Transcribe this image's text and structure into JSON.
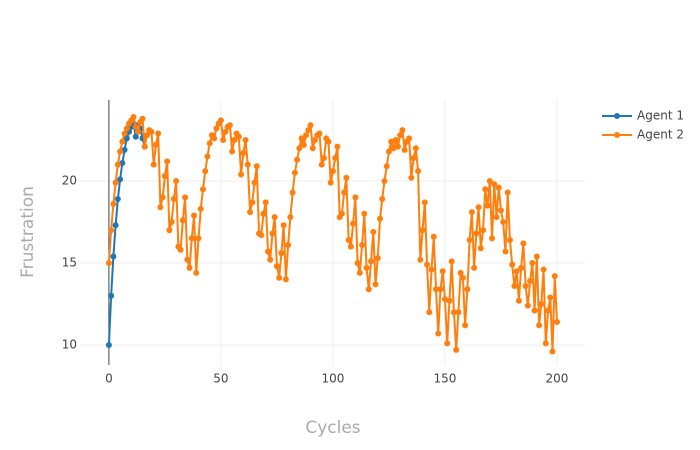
{
  "chart_data": {
    "type": "line",
    "x_label": "Cycles",
    "y_label": "Frustration",
    "xlim": [
      -12.9,
      212.5
    ],
    "ylim": [
      8.78,
      24.94
    ],
    "xticks": [
      0,
      50,
      100,
      150,
      200
    ],
    "yticks": [
      10,
      15,
      20
    ],
    "grid": true,
    "legend": "top-right",
    "series": [
      {
        "name": "Agent 1",
        "color": "#1f77b4",
        "x": [
          0,
          1,
          2,
          3,
          4,
          5,
          6,
          7,
          8,
          9,
          10,
          11,
          12,
          13,
          14,
          15,
          16
        ],
        "values": [
          10.0,
          13.0,
          15.4,
          17.3,
          18.9,
          20.1,
          21.1,
          21.9,
          22.6,
          23.0,
          23.3,
          23.5,
          22.7,
          23.4,
          23.2,
          22.6,
          22.1
        ]
      },
      {
        "name": "Agent 2",
        "color": "#ff7f0e",
        "x": [
          0,
          1,
          2,
          3,
          4,
          5,
          6,
          7,
          8,
          9,
          10,
          11,
          12,
          13,
          14,
          15,
          16,
          17,
          18,
          19,
          20,
          21,
          22,
          23,
          24,
          25,
          26,
          27,
          28,
          29,
          30,
          31,
          32,
          33,
          34,
          35,
          36,
          37,
          38,
          39,
          40,
          41,
          42,
          43,
          44,
          45,
          46,
          47,
          48,
          49,
          50,
          51,
          52,
          53,
          54,
          55,
          56,
          57,
          58,
          59,
          60,
          61,
          62,
          63,
          64,
          65,
          66,
          67,
          68,
          69,
          70,
          71,
          72,
          73,
          74,
          75,
          76,
          77,
          78,
          79,
          80,
          81,
          82,
          83,
          84,
          85,
          86,
          87,
          88,
          89,
          90,
          91,
          92,
          93,
          94,
          95,
          96,
          97,
          98,
          99,
          100,
          101,
          102,
          103,
          104,
          105,
          106,
          107,
          108,
          109,
          110,
          111,
          112,
          113,
          114,
          115,
          116,
          117,
          118,
          119,
          120,
          121,
          122,
          123,
          124,
          125,
          126,
          127,
          128,
          129,
          130,
          131,
          132,
          133,
          134,
          135,
          136,
          137,
          138,
          139,
          140,
          141,
          142,
          143,
          144,
          145,
          146,
          147,
          148,
          149,
          150,
          151,
          152,
          153,
          154,
          155,
          156,
          157,
          158,
          159,
          160,
          161,
          162,
          163,
          164,
          165,
          166,
          167,
          168,
          169,
          170,
          171,
          172,
          173,
          174,
          175,
          176,
          177,
          178,
          179,
          180,
          181,
          182,
          183,
          184,
          185,
          186,
          187,
          188,
          189,
          190,
          191,
          192,
          193,
          194,
          195,
          196,
          197,
          198,
          199,
          200
        ],
        "values": [
          15.0,
          17.0,
          18.6,
          19.9,
          21.0,
          21.8,
          22.4,
          22.9,
          23.2,
          23.5,
          23.7,
          23.9,
          23.3,
          23.0,
          23.6,
          23.8,
          22.1,
          22.8,
          23.1,
          23.0,
          21.0,
          22.2,
          22.9,
          18.4,
          19.0,
          20.3,
          21.2,
          17.0,
          17.5,
          18.9,
          20.0,
          16.0,
          15.8,
          17.6,
          19.0,
          15.2,
          14.7,
          16.5,
          17.9,
          14.4,
          16.5,
          18.3,
          19.5,
          20.6,
          21.5,
          22.3,
          22.8,
          22.6,
          23.2,
          23.5,
          23.7,
          22.5,
          23.0,
          23.3,
          23.4,
          21.8,
          22.5,
          22.9,
          22.7,
          20.4,
          21.7,
          22.5,
          21.0,
          18.1,
          18.7,
          19.9,
          20.9,
          16.8,
          16.7,
          18.0,
          18.7,
          15.7,
          15.2,
          16.8,
          17.8,
          14.8,
          14.1,
          15.6,
          17.3,
          14.0,
          16.1,
          17.8,
          19.3,
          20.5,
          21.3,
          22.0,
          22.6,
          22.2,
          22.8,
          23.1,
          23.4,
          22.0,
          22.5,
          22.8,
          22.9,
          21.0,
          21.4,
          22.6,
          22.4,
          19.9,
          20.6,
          21.4,
          22.1,
          17.8,
          18.0,
          19.3,
          20.2,
          16.4,
          16.0,
          17.4,
          19.0,
          15.0,
          14.4,
          16.1,
          18.0,
          14.7,
          13.4,
          15.1,
          16.9,
          13.7,
          15.3,
          17.7,
          18.9,
          20.0,
          20.9,
          21.8,
          22.4,
          22.0,
          22.5,
          22.1,
          22.8,
          23.1,
          21.9,
          22.4,
          22.6,
          20.2,
          21.4,
          22.0,
          20.6,
          15.2,
          17.0,
          18.7,
          14.9,
          12.0,
          14.6,
          16.6,
          13.4,
          10.7,
          13.4,
          14.5,
          12.8,
          10.1,
          12.7,
          15.1,
          12.0,
          9.7,
          12.0,
          14.4,
          14.1,
          11.2,
          13.4,
          16.4,
          18.1,
          14.7,
          16.8,
          18.4,
          15.9,
          17.0,
          19.5,
          18.5,
          20.0,
          16.5,
          19.8,
          17.8,
          19.6,
          18.2,
          17.5,
          15.7,
          19.3,
          16.4,
          14.9,
          13.6,
          14.5,
          12.7,
          14.7,
          16.2,
          13.6,
          12.4,
          13.9,
          15.0,
          12.1,
          15.4,
          11.2,
          12.5,
          14.6,
          10.1,
          12.1,
          12.9,
          9.6,
          14.2,
          11.4
        ]
      }
    ]
  }
}
